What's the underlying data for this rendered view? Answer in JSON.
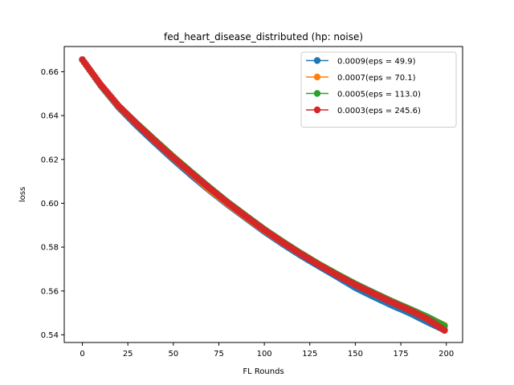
{
  "chart_data": {
    "type": "line",
    "title": "fed_heart_disease_distributed (hp: noise)",
    "xlabel": "FL Rounds",
    "ylabel": "loss",
    "xlim": [
      -9.95,
      208.95
    ],
    "ylim": [
      0.5365,
      0.6715
    ],
    "xticks": [
      0,
      25,
      50,
      75,
      100,
      125,
      150,
      175,
      200
    ],
    "xtick_labels": [
      "0",
      "25",
      "50",
      "75",
      "100",
      "125",
      "150",
      "175",
      "200"
    ],
    "yticks": [
      0.54,
      0.56,
      0.58,
      0.6,
      0.62,
      0.64,
      0.66
    ],
    "ytick_labels": [
      "0.54",
      "0.56",
      "0.58",
      "0.60",
      "0.62",
      "0.64",
      "0.66"
    ],
    "grid": false,
    "legend_position": "top-right",
    "marker": "circle",
    "series": [
      {
        "name": "0.0009(eps = 49.9)",
        "color": "#1f77b4",
        "x": [
          0,
          10,
          20,
          30,
          40,
          50,
          60,
          70,
          80,
          90,
          100,
          110,
          120,
          130,
          140,
          150,
          160,
          170,
          180,
          190,
          199
        ],
        "y": [
          0.6655,
          0.6538,
          0.6437,
          0.6353,
          0.6275,
          0.6199,
          0.6127,
          0.6058,
          0.5993,
          0.5932,
          0.5871,
          0.5815,
          0.5762,
          0.5713,
          0.5665,
          0.5615,
          0.5574,
          0.5535,
          0.5499,
          0.5457,
          0.5422
        ]
      },
      {
        "name": "0.0007(eps = 70.1)",
        "color": "#ff7f0e",
        "x": [
          0,
          10,
          20,
          30,
          40,
          50,
          60,
          70,
          80,
          90,
          100,
          110,
          120,
          130,
          140,
          150,
          160,
          170,
          180,
          190,
          199
        ],
        "y": [
          0.6655,
          0.654,
          0.6441,
          0.6361,
          0.6283,
          0.6207,
          0.6135,
          0.6062,
          0.5997,
          0.5936,
          0.5876,
          0.5821,
          0.5769,
          0.5721,
          0.5675,
          0.563,
          0.5589,
          0.555,
          0.5514,
          0.5478,
          0.5443
        ]
      },
      {
        "name": "0.0005(eps = 113.0)",
        "color": "#2ca02c",
        "x": [
          0,
          10,
          20,
          30,
          40,
          50,
          60,
          70,
          80,
          90,
          100,
          110,
          120,
          130,
          140,
          150,
          160,
          170,
          180,
          190,
          199
        ],
        "y": [
          0.6655,
          0.6541,
          0.6443,
          0.6363,
          0.6287,
          0.6212,
          0.6141,
          0.6071,
          0.6004,
          0.5942,
          0.5881,
          0.5825,
          0.5772,
          0.5722,
          0.5676,
          0.5632,
          0.5592,
          0.5553,
          0.5517,
          0.548,
          0.544
        ]
      },
      {
        "name": "0.0003(eps = 245.6)",
        "color": "#d62728",
        "x": [
          0,
          10,
          20,
          30,
          40,
          50,
          60,
          70,
          80,
          90,
          100,
          110,
          120,
          130,
          140,
          150,
          160,
          170,
          180,
          190,
          199
        ],
        "y": [
          0.6655,
          0.6542,
          0.6443,
          0.6361,
          0.6283,
          0.6208,
          0.6137,
          0.6068,
          0.6001,
          0.5939,
          0.5878,
          0.5822,
          0.5769,
          0.5719,
          0.5672,
          0.5628,
          0.5588,
          0.5549,
          0.5512,
          0.547,
          0.542
        ]
      }
    ]
  }
}
